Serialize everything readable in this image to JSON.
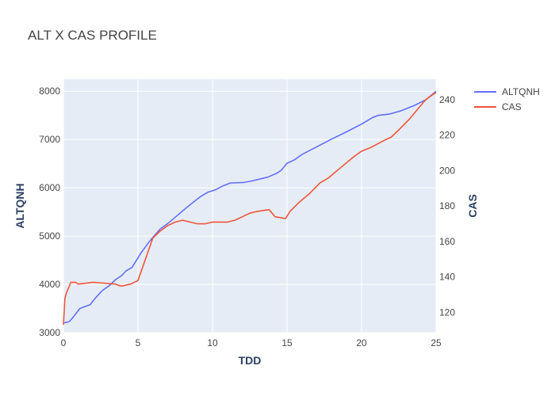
{
  "chart_data": {
    "type": "line",
    "title": "ALT X CAS PROFILE",
    "xlabel": "TDD",
    "ylabel": "ALTQNH",
    "y2label": "CAS",
    "xlim": [
      0,
      25
    ],
    "ylim": [
      3000,
      8250
    ],
    "y2lim": [
      108.6,
      251.6
    ],
    "xticks": [
      0,
      5,
      10,
      15,
      20,
      25
    ],
    "yticks": [
      3000,
      4000,
      5000,
      6000,
      7000,
      8000
    ],
    "y2ticks": [
      120,
      140,
      160,
      180,
      200,
      220,
      240
    ],
    "grid": true,
    "legend": "top-right",
    "background_color": "#e5ecf6",
    "series": [
      {
        "name": "ALTQNH",
        "axis": "left",
        "color": "#636efa",
        "x": [
          0,
          0.4,
          0.6,
          1.1,
          1.8,
          2.1,
          2.6,
          3.1,
          3.5,
          3.9,
          4.2,
          4.6,
          5.2,
          5.8,
          6.5,
          7.0,
          7.5,
          8.3,
          9.2,
          9.7,
          10.2,
          10.7,
          11.2,
          12.1,
          12.6,
          13.7,
          14.3,
          14.6,
          15.0,
          15.5,
          16.0,
          17.0,
          18.0,
          19.0,
          20.0,
          20.7,
          21.1,
          21.9,
          22.6,
          23.5,
          24.3,
          25.0
        ],
        "y": [
          3200,
          3230,
          3300,
          3500,
          3580,
          3700,
          3870,
          3980,
          4100,
          4180,
          4280,
          4350,
          4650,
          4900,
          5150,
          5260,
          5390,
          5600,
          5820,
          5910,
          5960,
          6040,
          6100,
          6110,
          6140,
          6220,
          6300,
          6360,
          6510,
          6580,
          6690,
          6850,
          7010,
          7160,
          7320,
          7450,
          7500,
          7530,
          7590,
          7700,
          7820,
          8000
        ]
      },
      {
        "name": "CAS",
        "axis": "right",
        "color": "#ef553b",
        "x": [
          0,
          0.1,
          0.2,
          0.35,
          0.5,
          0.8,
          1.0,
          2.0,
          3.5,
          3.8,
          4.0,
          4.5,
          5.0,
          5.5,
          6.0,
          6.5,
          7.0,
          7.5,
          8.0,
          8.5,
          9.0,
          9.5,
          10.0,
          11.0,
          11.5,
          12.0,
          12.5,
          13.0,
          13.8,
          14.2,
          14.9,
          15.2,
          15.8,
          16.5,
          17.2,
          17.8,
          18.5,
          19.5,
          20.0,
          20.6,
          21.5,
          22.0,
          22.5,
          23.2,
          23.8,
          24.3,
          24.8,
          25.0
        ],
        "y": [
          113,
          128,
          131,
          134,
          137,
          137,
          136,
          137,
          136,
          135,
          135,
          136,
          138,
          150,
          162,
          166,
          169,
          171,
          172,
          171,
          170,
          170,
          171,
          171,
          172,
          174,
          176,
          177,
          178,
          174,
          173,
          177,
          182,
          187,
          193,
          196,
          201,
          208,
          211,
          213,
          217,
          219,
          223,
          229,
          235,
          240,
          243,
          244
        ]
      }
    ]
  }
}
